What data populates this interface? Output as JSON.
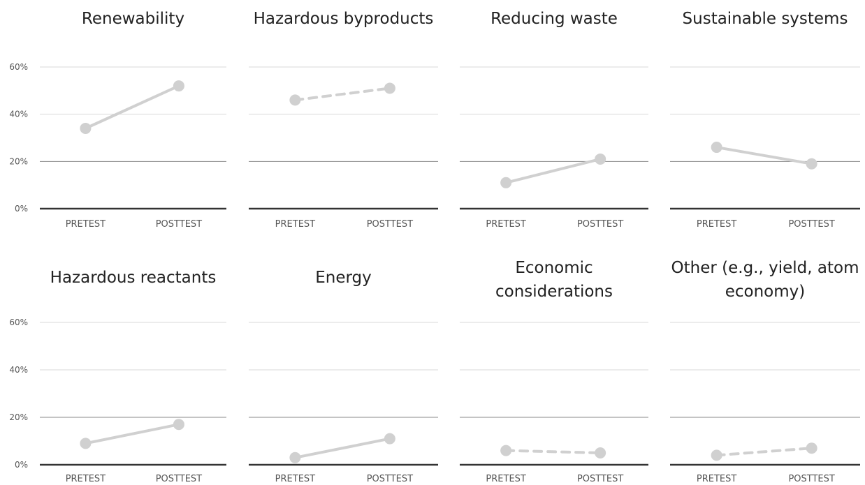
{
  "chart_data": [
    {
      "type": "line",
      "title": "Renewability",
      "categories": [
        "PRETEST",
        "POSTTEST"
      ],
      "values": [
        34,
        52
      ],
      "line_style": "solid",
      "ylim": [
        0,
        70
      ],
      "yticks": [
        0,
        20,
        40,
        60
      ],
      "ytick_labels": [
        "0%",
        "20%",
        "40%",
        "60%"
      ]
    },
    {
      "type": "line",
      "title": "Hazardous byproducts",
      "categories": [
        "PRETEST",
        "POSTTEST"
      ],
      "values": [
        46,
        51
      ],
      "line_style": "dashed",
      "ylim": [
        0,
        70
      ],
      "yticks": [
        0,
        20,
        40,
        60
      ],
      "ytick_labels": [
        "0%",
        "20%",
        "40%",
        "60%"
      ]
    },
    {
      "type": "line",
      "title": "Reducing waste",
      "categories": [
        "PRETEST",
        "POSTTEST"
      ],
      "values": [
        11,
        21
      ],
      "line_style": "solid",
      "ylim": [
        0,
        70
      ],
      "yticks": [
        0,
        20,
        40,
        60
      ],
      "ytick_labels": [
        "0%",
        "20%",
        "40%",
        "60%"
      ]
    },
    {
      "type": "line",
      "title": "Sustainable systems",
      "categories": [
        "PRETEST",
        "POSTTEST"
      ],
      "values": [
        26,
        19
      ],
      "line_style": "solid",
      "ylim": [
        0,
        70
      ],
      "yticks": [
        0,
        20,
        40,
        60
      ],
      "ytick_labels": [
        "0%",
        "20%",
        "40%",
        "60%"
      ]
    },
    {
      "type": "line",
      "title": "Hazardous reactants",
      "categories": [
        "PRETEST",
        "POSTTEST"
      ],
      "values": [
        9,
        17
      ],
      "line_style": "solid",
      "ylim": [
        0,
        70
      ],
      "yticks": [
        0,
        20,
        40,
        60
      ],
      "ytick_labels": [
        "0%",
        "20%",
        "40%",
        "60%"
      ]
    },
    {
      "type": "line",
      "title": "Energy",
      "categories": [
        "PRETEST",
        "POSTTEST"
      ],
      "values": [
        3,
        11
      ],
      "line_style": "solid",
      "ylim": [
        0,
        70
      ],
      "yticks": [
        0,
        20,
        40,
        60
      ],
      "ytick_labels": [
        "0%",
        "20%",
        "40%",
        "60%"
      ]
    },
    {
      "type": "line",
      "title": "Economic considerations",
      "categories": [
        "PRETEST",
        "POSTTEST"
      ],
      "values": [
        6,
        5
      ],
      "line_style": "dashed",
      "ylim": [
        0,
        70
      ],
      "yticks": [
        0,
        20,
        40,
        60
      ],
      "ytick_labels": [
        "0%",
        "20%",
        "40%",
        "60%"
      ]
    },
    {
      "type": "line",
      "title": "Other (e.g., yield, atom economy)",
      "categories": [
        "PRETEST",
        "POSTTEST"
      ],
      "values": [
        4,
        7
      ],
      "line_style": "dashed",
      "ylim": [
        0,
        70
      ],
      "yticks": [
        0,
        20,
        40,
        60
      ],
      "ytick_labels": [
        "0%",
        "20%",
        "40%",
        "60%"
      ]
    }
  ],
  "colors": {
    "series": "#d0d0d0",
    "gridline_upper": "#d8d8d8",
    "gridline_lower": "#8a8a8a",
    "baseline": "#333333",
    "text": "#222222",
    "tick_text": "#555555"
  }
}
